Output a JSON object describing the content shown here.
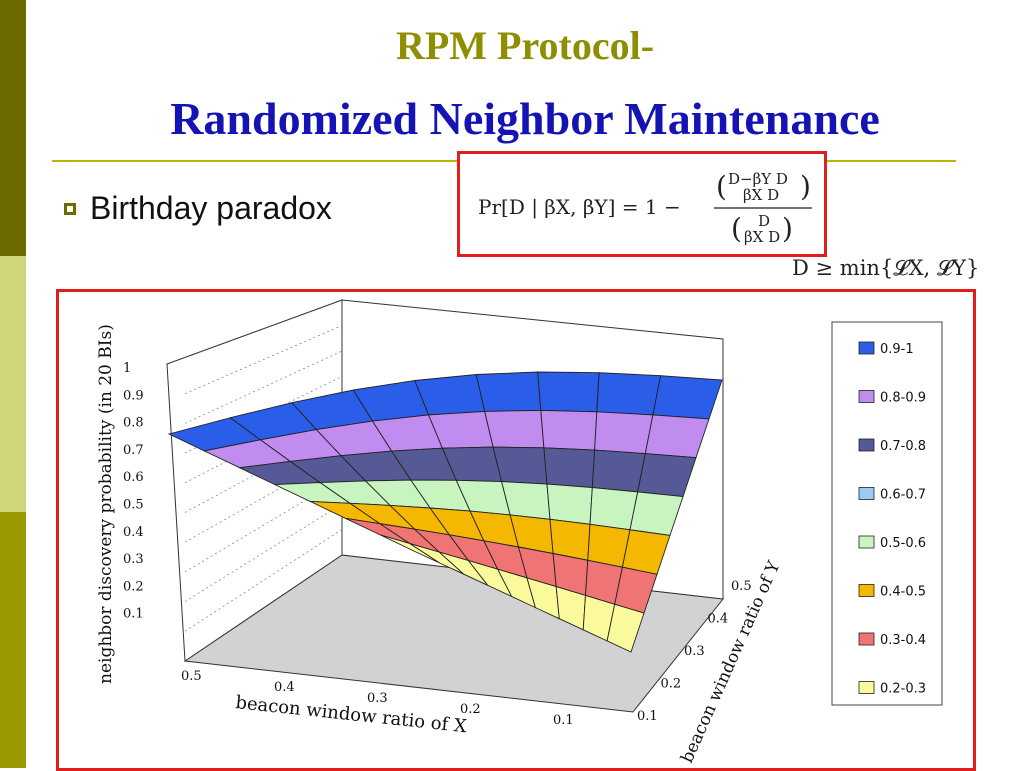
{
  "slide": {
    "title_line1": "RPM Protocol-",
    "title_line2": "Randomized Neighbor Maintenance",
    "bullet": "Birthday paradox",
    "formula": {
      "lhs": "Pr[D | βX, βY] = 1 −",
      "num_top": "D−βY D",
      "num_bottom": "βX D",
      "den_top": "D",
      "den_bottom": "βX D"
    },
    "condition": "D ≥ min{𝓛X, 𝓛Y}"
  },
  "chart_data": {
    "type": "surface",
    "zlabel": "neighbor discovery probability (in 20 BIs)",
    "xlabel": "beacon window ratio of X",
    "ylabel": "beacon window ratio of Y",
    "z_ticks": [
      "0.1",
      "0.2",
      "0.3",
      "0.4",
      "0.5",
      "0.6",
      "0.7",
      "0.8",
      "0.9",
      "1"
    ],
    "x_ticks": [
      "0.5",
      "0.4",
      "0.3",
      "0.2",
      "0.1"
    ],
    "y_ticks": [
      "0.1",
      "0.2",
      "0.3",
      "0.4",
      "0.5"
    ],
    "zlim": [
      0,
      1
    ],
    "legend": [
      {
        "label": "0.9-1",
        "color": "#2a5ee8"
      },
      {
        "label": "0.8-0.9",
        "color": "#c08cf0"
      },
      {
        "label": "0.7-0.8",
        "color": "#555a96"
      },
      {
        "label": "0.6-0.7",
        "color": "#9ccaf2"
      },
      {
        "label": "0.5-0.6",
        "color": "#c8f4c0"
      },
      {
        "label": "0.4-0.5",
        "color": "#f5b800"
      },
      {
        "label": "0.3-0.4",
        "color": "#f07474"
      },
      {
        "label": "0.2-0.3",
        "color": "#fafa9c"
      }
    ],
    "legend_position": "right",
    "grid": true
  },
  "colors": {
    "title1": "#8e8e00",
    "title2": "#1414b4",
    "frame": "#e01e1e",
    "floor": "#d2d2d2"
  }
}
